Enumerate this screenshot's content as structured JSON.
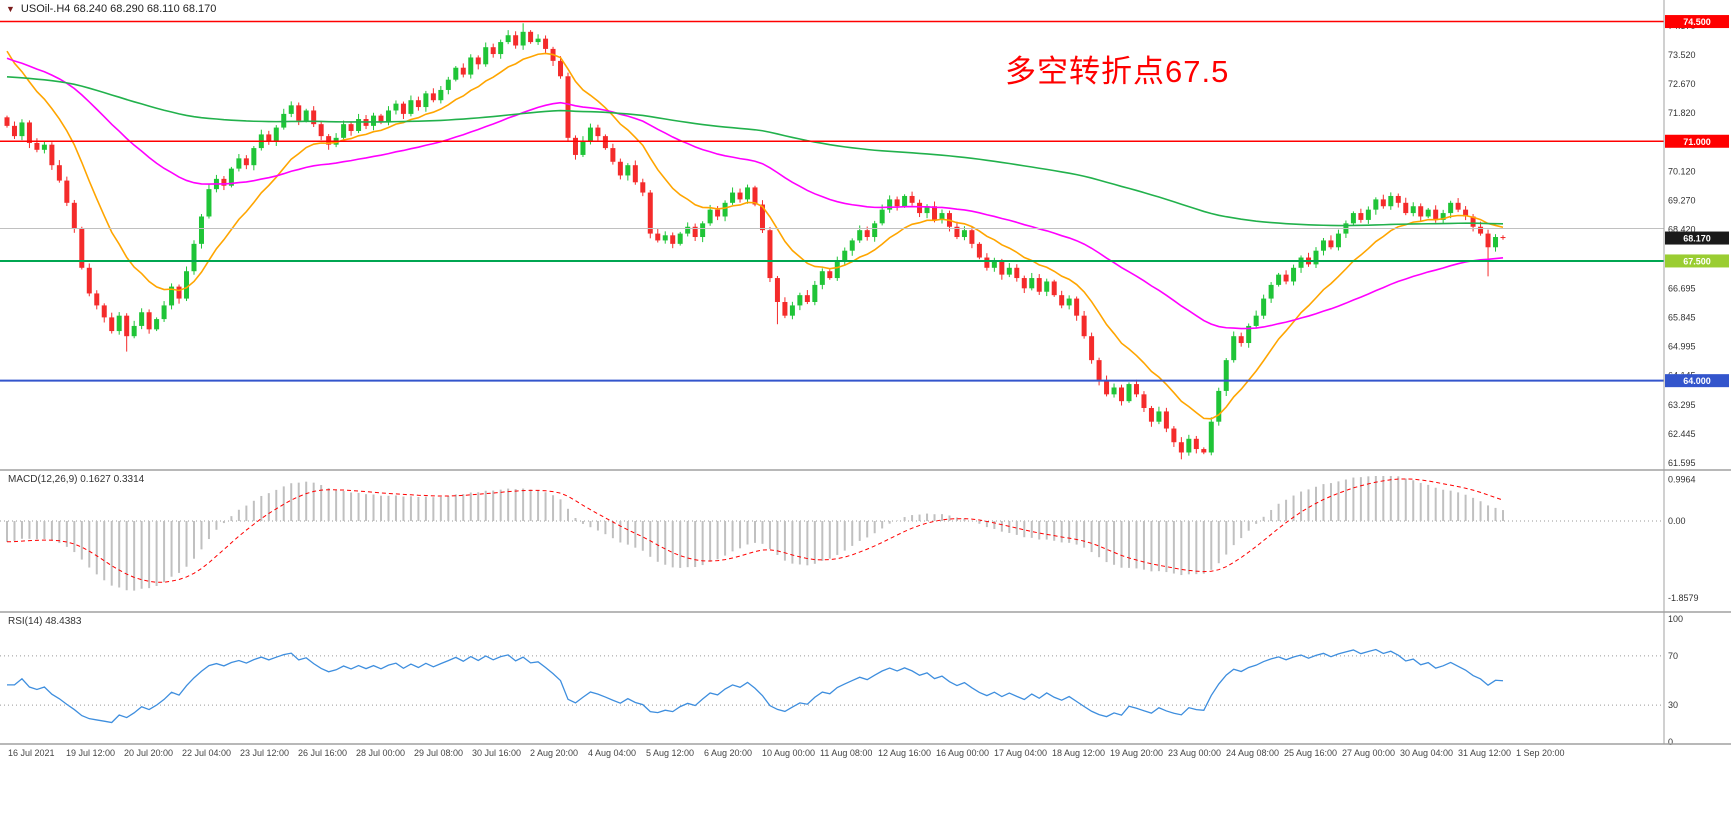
{
  "window": {
    "symbol_title": "USOil-.H4  68.240 68.290 68.110 68.170"
  },
  "annotation": {
    "text": "多空转折点67.5",
    "color": "#ff0000"
  },
  "macd_panel": {
    "label": "MACD(12,26,9) 0.1627 0.3314"
  },
  "rsi_panel": {
    "label": "RSI(14) 48.4383"
  },
  "colors": {
    "candle_up": "#1fc437",
    "candle_down": "#f42b2b",
    "ma_fast": "#ffa500",
    "ma_mid": "#ff00ff",
    "ma_slow": "#22b14c",
    "macd_bar": "#c0c0c0",
    "macd_signal": "#ff0000",
    "rsi_line": "#3e8ede",
    "axis_text": "#333333",
    "separator": "#a0a0a0",
    "grid_dotted": "#999999"
  },
  "chart_data": {
    "type": "candlestick+indicators",
    "symbol": "USOil-",
    "timeframe": "H4",
    "quote": {
      "open": "68.240",
      "high": "68.290",
      "low": "68.110",
      "close": "68.170"
    },
    "x_labels": [
      "16 Jul 2021",
      "19 Jul 12:00",
      "20 Jul 20:00",
      "22 Jul 04:00",
      "23 Jul 12:00",
      "26 Jul 16:00",
      "28 Jul 00:00",
      "29 Jul 08:00",
      "30 Jul 16:00",
      "2 Aug 20:00",
      "4 Aug 04:00",
      "5 Aug 12:00",
      "6 Aug 20:00",
      "10 Aug 00:00",
      "11 Aug 08:00",
      "12 Aug 16:00",
      "16 Aug 00:00",
      "17 Aug 04:00",
      "18 Aug 12:00",
      "19 Aug 20:00",
      "23 Aug 00:00",
      "24 Aug 08:00",
      "25 Aug 16:00",
      "27 Aug 00:00",
      "30 Aug 04:00",
      "31 Aug 12:00",
      "1 Sep 20:00"
    ],
    "price_axis_ticks": [
      "74.370",
      "73.520",
      "72.670",
      "71.820",
      "70.970",
      "70.120",
      "69.270",
      "68.420",
      "67.570",
      "66.695",
      "65.845",
      "64.995",
      "64.145",
      "63.295",
      "62.445",
      "61.595"
    ],
    "hlines": [
      {
        "price": 74.5,
        "color": "#ff0000",
        "width": 1.5
      },
      {
        "price": 71.0,
        "color": "#ff0000",
        "width": 1.5
      },
      {
        "price": 68.45,
        "color": "#c0c0c0",
        "width": 1
      },
      {
        "price": 67.5,
        "color": "#00a651",
        "width": 2
      },
      {
        "price": 64.0,
        "color": "#3355cc",
        "width": 2
      }
    ],
    "badges": [
      {
        "label": "74.500",
        "bg": "#ff0000",
        "price": 74.5
      },
      {
        "label": "71.000",
        "bg": "#ff0000",
        "price": 71.0
      },
      {
        "label": "68.170",
        "bg": "#1a1a1a",
        "price": 68.17
      },
      {
        "label": "67.500",
        "bg": "#9acd32",
        "price": 67.5
      },
      {
        "label": "64.000",
        "bg": "#3355cc",
        "price": 64.0
      }
    ],
    "open_first": 71.7,
    "closes": [
      71.45,
      71.15,
      71.55,
      70.95,
      70.75,
      70.9,
      70.3,
      69.85,
      69.2,
      68.45,
      67.3,
      66.55,
      66.2,
      65.85,
      65.45,
      65.9,
      65.3,
      65.6,
      66.0,
      65.5,
      65.8,
      66.2,
      66.75,
      66.4,
      67.2,
      68.0,
      68.8,
      69.6,
      69.9,
      69.7,
      70.2,
      70.5,
      70.3,
      70.8,
      71.2,
      71.0,
      71.4,
      71.8,
      72.05,
      71.6,
      71.9,
      71.5,
      71.15,
      70.9,
      71.1,
      71.5,
      71.3,
      71.65,
      71.45,
      71.75,
      71.55,
      71.9,
      72.1,
      71.8,
      72.2,
      72.0,
      72.4,
      72.2,
      72.5,
      72.8,
      73.15,
      72.95,
      73.45,
      73.25,
      73.75,
      73.55,
      73.9,
      74.1,
      73.8,
      74.2,
      73.9,
      74.0,
      73.7,
      73.35,
      72.9,
      71.1,
      70.6,
      71.0,
      71.4,
      71.15,
      70.8,
      70.4,
      70.0,
      70.3,
      69.8,
      69.5,
      68.3,
      68.1,
      68.25,
      68.0,
      68.3,
      68.5,
      68.2,
      68.6,
      69.0,
      68.8,
      69.2,
      69.5,
      69.3,
      69.65,
      69.15,
      68.4,
      67.0,
      66.3,
      65.9,
      66.2,
      66.5,
      66.3,
      66.8,
      67.2,
      67.0,
      67.5,
      67.8,
      68.1,
      68.4,
      68.2,
      68.6,
      69.0,
      69.3,
      69.1,
      69.4,
      69.2,
      68.9,
      69.1,
      68.7,
      68.9,
      68.5,
      68.2,
      68.4,
      68.0,
      67.6,
      67.3,
      67.5,
      67.1,
      67.3,
      67.0,
      66.7,
      67.0,
      66.6,
      66.9,
      66.5,
      66.2,
      66.4,
      65.9,
      65.3,
      64.6,
      64.0,
      63.6,
      63.8,
      63.4,
      63.9,
      63.6,
      63.2,
      62.8,
      63.1,
      62.6,
      62.2,
      61.9,
      62.3,
      62.0,
      61.9,
      62.8,
      63.7,
      64.6,
      65.3,
      65.1,
      65.6,
      65.9,
      66.4,
      66.8,
      67.1,
      66.9,
      67.3,
      67.6,
      67.4,
      67.8,
      68.1,
      67.9,
      68.3,
      68.6,
      68.9,
      68.7,
      69.0,
      69.3,
      69.1,
      69.4,
      69.2,
      68.9,
      69.1,
      68.8,
      69.0,
      68.7,
      68.9,
      69.2,
      69.0,
      68.8,
      68.5,
      68.3,
      67.9,
      68.2,
      68.17
    ],
    "wick_highs": {
      "69": 74.45
    },
    "wick_lows": {
      "16": 64.85,
      "103": 65.65,
      "157": 61.7,
      "198": 67.05
    },
    "moving_averages": [
      {
        "name": "ma-fast-orange",
        "color_key": "ma_fast",
        "period": 13,
        "seed": 74.0
      },
      {
        "name": "ma-mid-magenta",
        "color_key": "ma_mid",
        "period": 55,
        "seed": 73.5
      },
      {
        "name": "ma-slow-green",
        "color_key": "ma_slow",
        "period": 200,
        "seed": 72.9
      }
    ],
    "macd": {
      "fast": 12,
      "slow": 26,
      "signal": 9,
      "seed_fast": 71.35,
      "seed_slow": 71.9,
      "value": "0.1627",
      "signal_value": "0.3314",
      "axis_ticks": [
        {
          "label": "0.9964",
          "value": 0.9964
        },
        {
          "label": "0.00",
          "value": 0
        },
        {
          "label": "-1.8579",
          "value": -1.8579
        }
      ]
    },
    "rsi": {
      "period": 14,
      "value": "48.4383",
      "levels": [
        70,
        30
      ],
      "axis_ticks": [
        {
          "label": "100",
          "value": 100
        },
        {
          "label": "70",
          "value": 70
        },
        {
          "label": "30",
          "value": 30
        },
        {
          "label": "0",
          "value": 0
        }
      ]
    }
  }
}
